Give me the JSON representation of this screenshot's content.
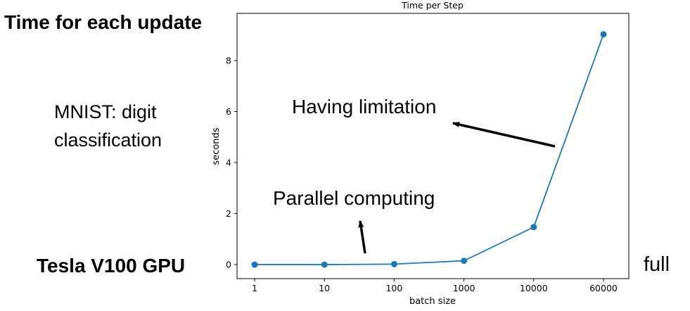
{
  "slide": {
    "title": "Time for each update",
    "subtitle_line1": "MNIST: digit",
    "subtitle_line2": "classification",
    "gpu": "Tesla V100 GPU",
    "full": "full"
  },
  "chart_data": {
    "type": "line",
    "title": "Time per Step",
    "xlabel": "batch size",
    "ylabel": "seconds",
    "categories": [
      "1",
      "10",
      "100",
      "1000",
      "10000",
      "60000"
    ],
    "values": [
      0.0,
      0.0,
      0.02,
      0.15,
      1.47,
      9.03
    ],
    "yticks": [
      0,
      2,
      4,
      6,
      8
    ],
    "ylim": [
      -0.55,
      9.85
    ],
    "color": "#1f77b4",
    "annotations": [
      {
        "text": "Having limitation"
      },
      {
        "text": "Parallel computing"
      }
    ]
  }
}
